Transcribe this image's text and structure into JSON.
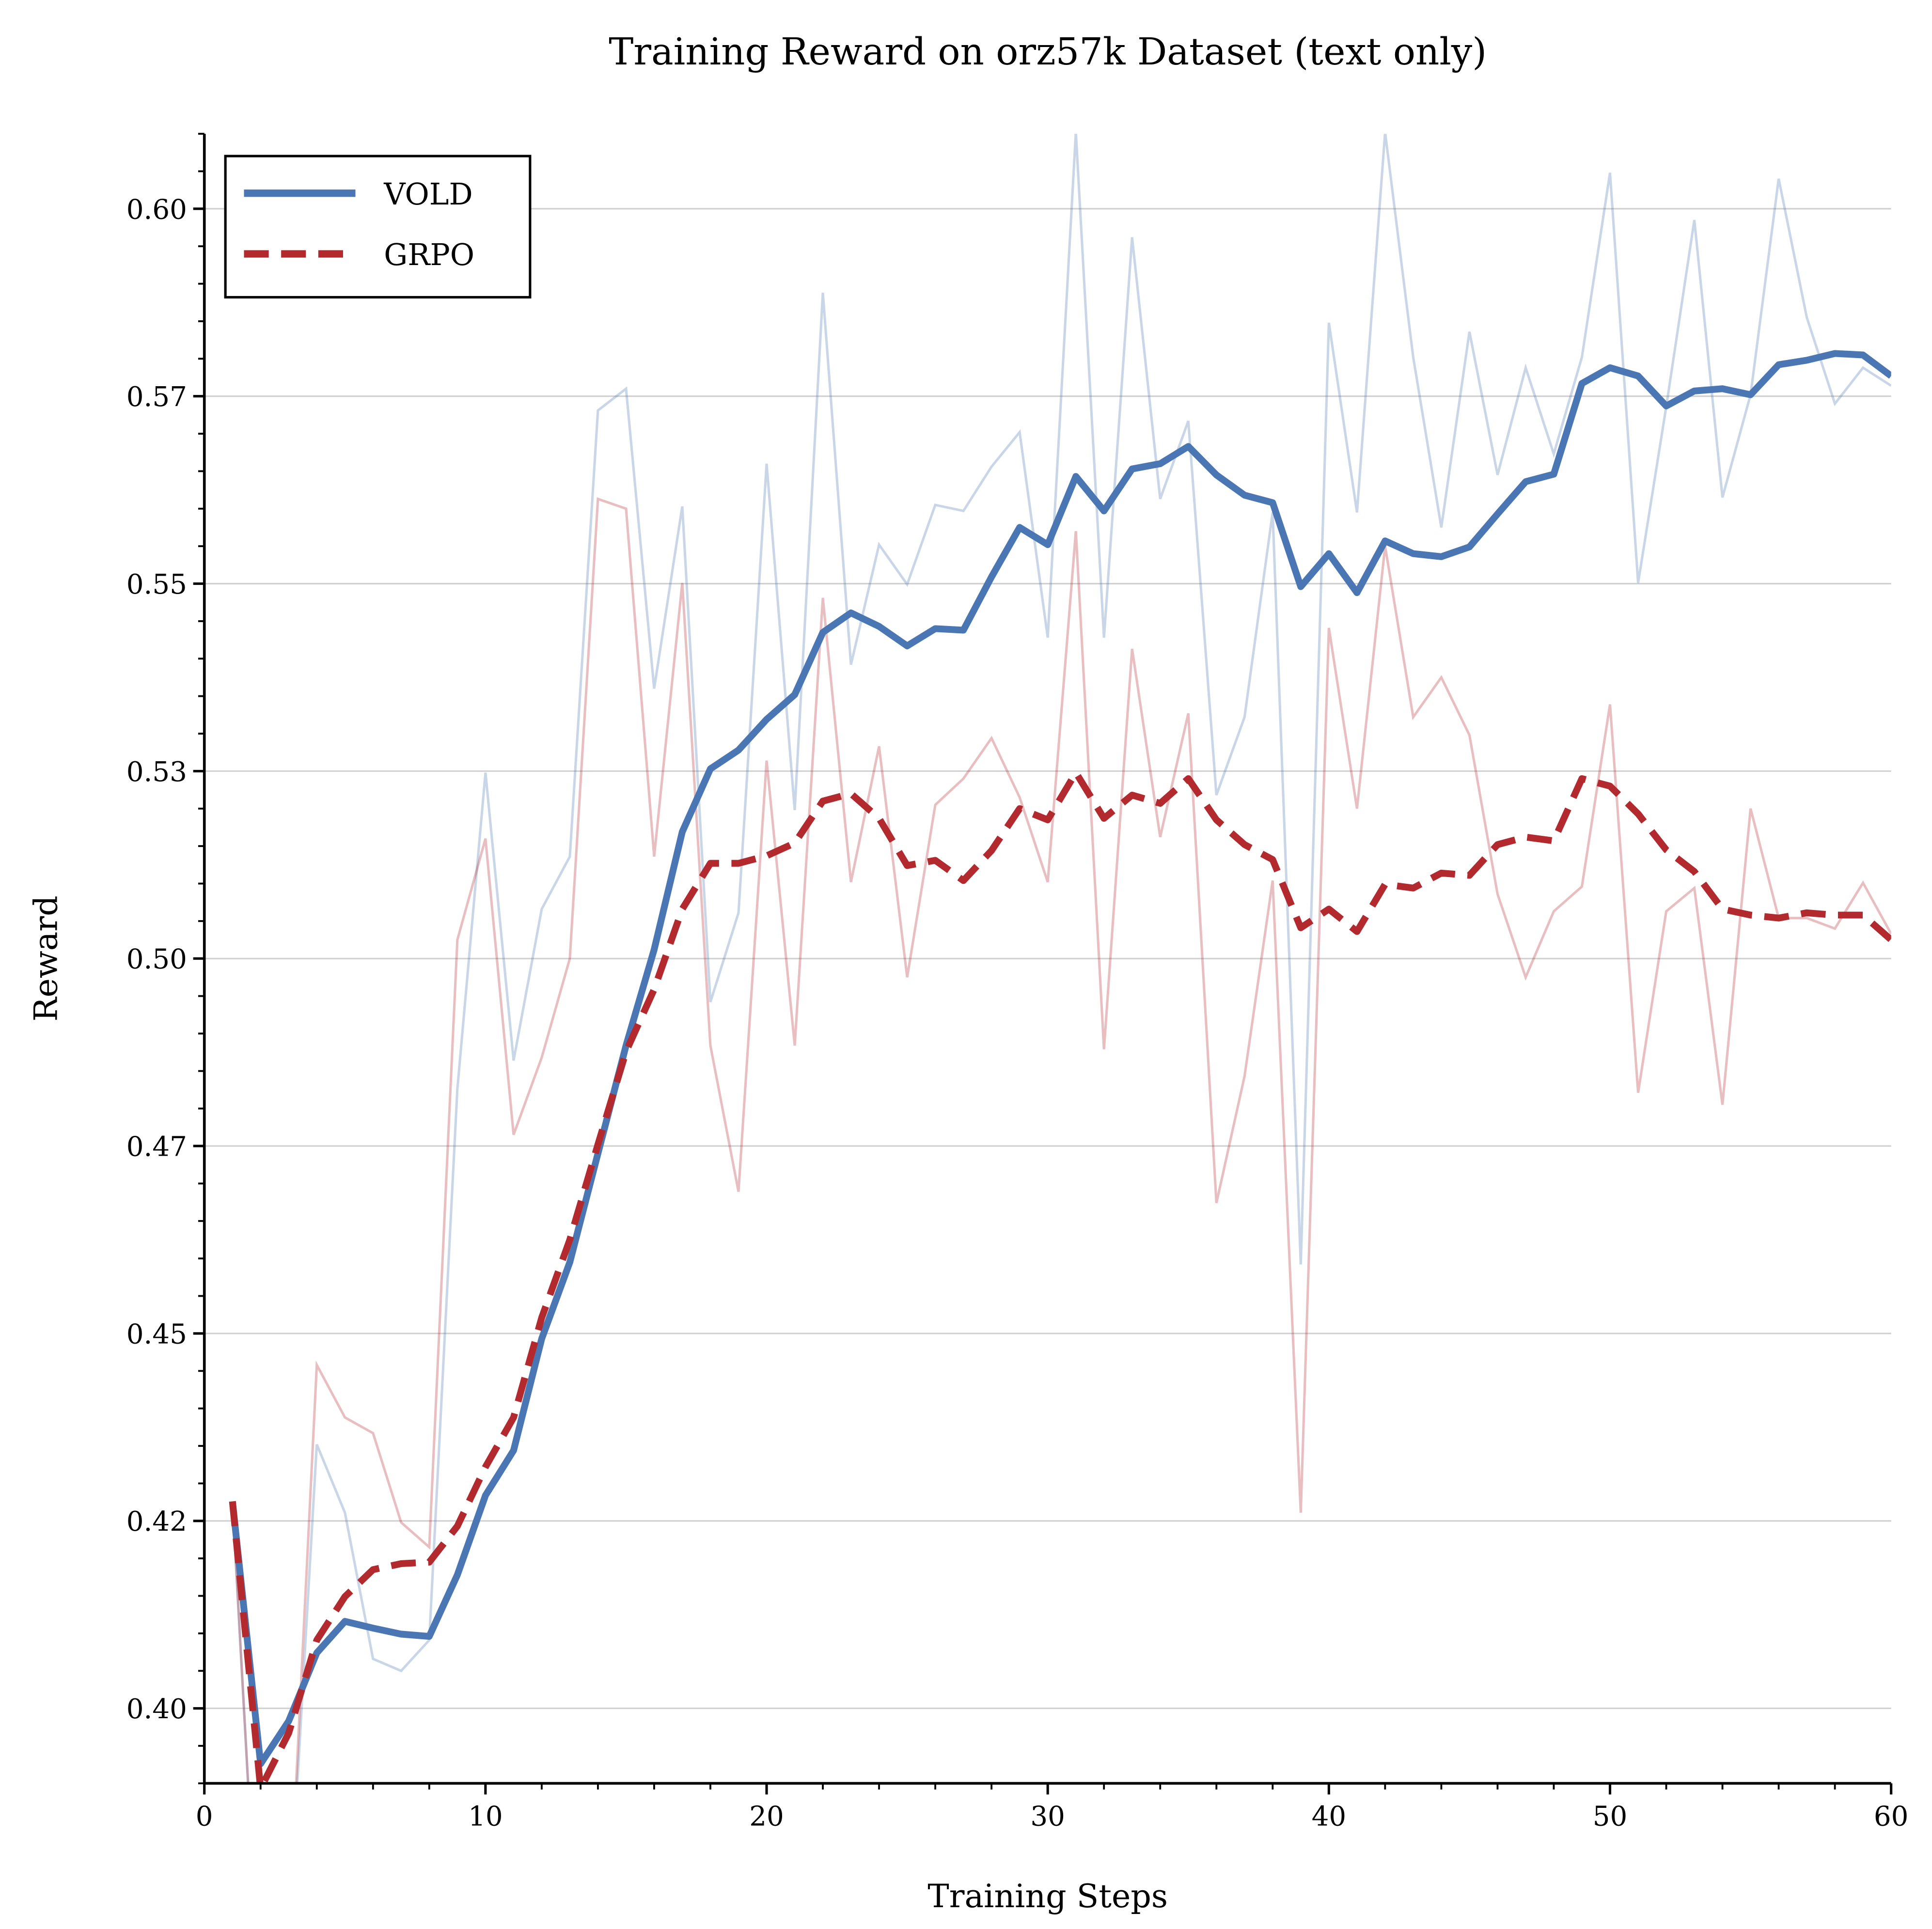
{
  "chart_data": {
    "type": "line",
    "title": "Training Reward on orz57k Dataset (text only)",
    "xlabel": "Training Steps",
    "ylabel": "Reward",
    "xlim": [
      0,
      60
    ],
    "ylim": [
      0.39,
      0.61
    ],
    "grid": "horizontal",
    "legend_position": "top-left",
    "x_ticks": [
      0,
      10,
      20,
      30,
      40,
      50,
      60
    ],
    "x_tick_labels": [
      "0",
      "10",
      "20",
      "30",
      "40",
      "50",
      "60"
    ],
    "y_ticks": [
      0.4,
      0.425,
      0.45,
      0.475,
      0.5,
      0.525,
      0.55,
      0.575,
      0.6
    ],
    "y_tick_labels": [
      "0.40",
      "0.42",
      "0.45",
      "0.47",
      "0.50",
      "0.53",
      "0.55",
      "0.57",
      "0.60"
    ],
    "x": [
      1,
      2,
      3,
      4,
      5,
      6,
      7,
      8,
      9,
      10,
      11,
      12,
      13,
      14,
      15,
      16,
      17,
      18,
      19,
      20,
      21,
      22,
      23,
      24,
      25,
      26,
      27,
      28,
      29,
      30,
      31,
      32,
      33,
      34,
      35,
      36,
      37,
      38,
      39,
      40,
      41,
      42,
      43,
      44,
      45,
      46,
      47,
      48,
      49,
      50,
      51,
      52,
      53,
      54,
      55,
      56,
      57,
      58,
      59,
      60
    ],
    "series": [
      {
        "name": "VOLD",
        "color": "#4a77b4",
        "style": "solid",
        "smoothed": [
          0.4276,
          0.3926,
          0.3983,
          0.4074,
          0.4116,
          0.4107,
          0.4099,
          0.4096,
          0.4178,
          0.4284,
          0.4344,
          0.4493,
          0.4595,
          0.474,
          0.4884,
          0.5012,
          0.5169,
          0.5253,
          0.5278,
          0.5319,
          0.5352,
          0.5435,
          0.5461,
          0.5443,
          0.5417,
          0.544,
          0.5438,
          0.5509,
          0.5575,
          0.5552,
          0.5643,
          0.5597,
          0.5653,
          0.566,
          0.5683,
          0.5645,
          0.5618,
          0.5608,
          0.5496,
          0.554,
          0.5488,
          0.5557,
          0.554,
          0.5536,
          0.5549,
          0.5593,
          0.5636,
          0.5646,
          0.5767,
          0.5788,
          0.5777,
          0.5737,
          0.5757,
          0.576,
          0.5752,
          0.5792,
          0.5798,
          0.5807,
          0.5805,
          0.5777
        ],
        "raw": [
          0.4276,
          0.36,
          0.37,
          0.4352,
          0.4261,
          0.4066,
          0.405,
          0.4091,
          0.4826,
          0.5248,
          0.4864,
          0.5066,
          0.5136,
          0.5731,
          0.576,
          0.536,
          0.5603,
          0.4942,
          0.5061,
          0.566,
          0.5198,
          0.5888,
          0.5392,
          0.5552,
          0.5499,
          0.5605,
          0.5597,
          0.5656,
          0.5702,
          0.5428,
          0.6102,
          0.5428,
          0.5962,
          0.5613,
          0.5717,
          0.5218,
          0.5322,
          0.5595,
          0.4592,
          0.5848,
          0.5595,
          0.6102,
          0.5802,
          0.5575,
          0.5836,
          0.5645,
          0.5788,
          0.5673,
          0.5802,
          0.6048,
          0.5501,
          0.5736,
          0.5985,
          0.5615,
          0.5752,
          0.604,
          0.5855,
          0.574,
          0.5788,
          0.5764
        ]
      },
      {
        "name": "GRPO",
        "color": "#b2292e",
        "style": "dashed",
        "smoothed": [
          0.4276,
          0.3893,
          0.3967,
          0.4091,
          0.4149,
          0.4185,
          0.4193,
          0.4195,
          0.4243,
          0.4322,
          0.4388,
          0.4521,
          0.4625,
          0.4752,
          0.4876,
          0.4959,
          0.5066,
          0.5127,
          0.5127,
          0.5137,
          0.5154,
          0.521,
          0.522,
          0.5187,
          0.5124,
          0.5131,
          0.5104,
          0.5144,
          0.52,
          0.5185,
          0.5248,
          0.5187,
          0.5218,
          0.5207,
          0.524,
          0.5185,
          0.5152,
          0.5132,
          0.5041,
          0.5066,
          0.5036,
          0.5099,
          0.5094,
          0.5114,
          0.5111,
          0.5152,
          0.5162,
          0.5157,
          0.524,
          0.523,
          0.5193,
          0.5145,
          0.5116,
          0.5066,
          0.5058,
          0.5054,
          0.5061,
          0.5058,
          0.5058,
          0.5025
        ],
        "raw": [
          0.4276,
          0.36,
          0.37,
          0.4458,
          0.4388,
          0.4367,
          0.4248,
          0.4215,
          0.5025,
          0.516,
          0.4765,
          0.4868,
          0.5,
          0.5613,
          0.56,
          0.5136,
          0.5501,
          0.4884,
          0.4689,
          0.5264,
          0.4884,
          0.5481,
          0.5102,
          0.5283,
          0.4975,
          0.5205,
          0.524,
          0.5294,
          0.5215,
          0.5102,
          0.557,
          0.4879,
          0.5413,
          0.5162,
          0.5327,
          0.4674,
          0.4843,
          0.5104,
          0.4261,
          0.5441,
          0.52,
          0.555,
          0.5322,
          0.5375,
          0.5298,
          0.5086,
          0.4975,
          0.5063,
          0.5096,
          0.5339,
          0.4821,
          0.5063,
          0.5094,
          0.4805,
          0.52,
          0.5054,
          0.5054,
          0.504,
          0.5101,
          0.5033
        ]
      }
    ]
  }
}
